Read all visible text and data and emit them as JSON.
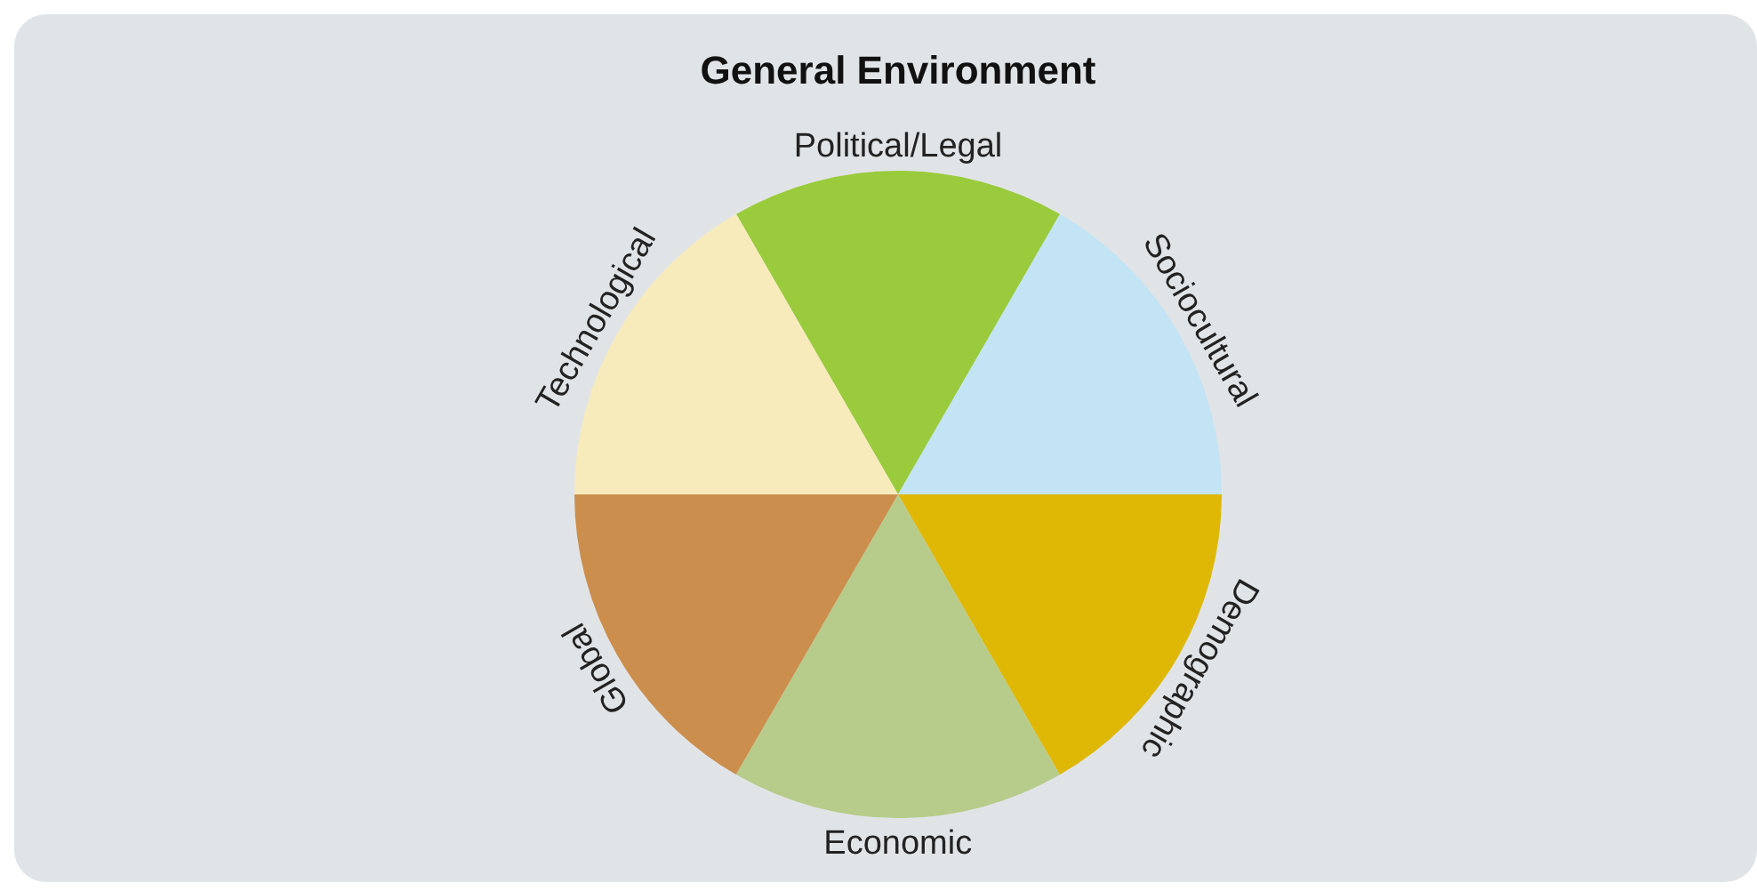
{
  "chart_data": {
    "type": "pie",
    "title": "General Environment",
    "categories": [
      "Political/Legal",
      "Sociocultural",
      "Demographic",
      "Economic",
      "Global",
      "Technological"
    ],
    "values": [
      16.67,
      16.67,
      16.67,
      16.67,
      16.66,
      16.66
    ],
    "colors": [
      "#9acb3c",
      "#c3e4f5",
      "#dfb806",
      "#b7cc8a",
      "#cc8e4d",
      "#f8ebbb"
    ],
    "legend": false
  }
}
